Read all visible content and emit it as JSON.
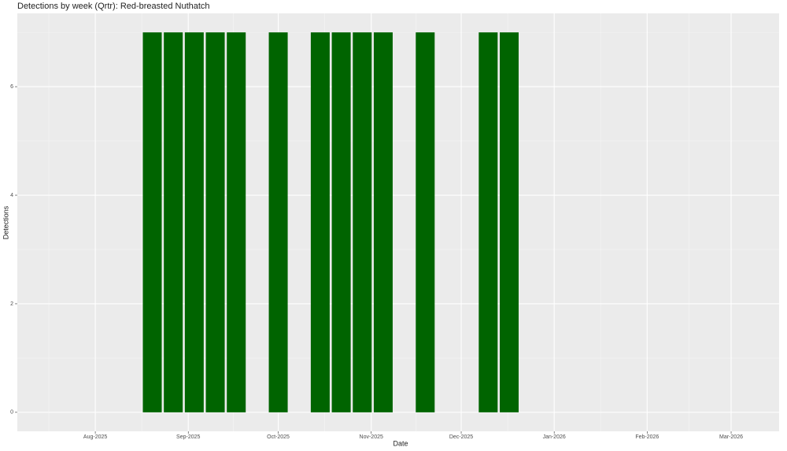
{
  "chart_data": {
    "type": "bar",
    "title": "Detections by week (Qrtr): Red-breasted Nuthatch",
    "x_label": "Date",
    "y_label": "Detections",
    "x": [
      "2025-08-20",
      "2025-08-27",
      "2025-09-03",
      "2025-09-10",
      "2025-09-17",
      "2025-10-01",
      "2025-10-15",
      "2025-10-22",
      "2025-10-29",
      "2025-11-05",
      "2025-11-19",
      "2025-12-10",
      "2025-12-17"
    ],
    "values": [
      7,
      7,
      7,
      7,
      7,
      7,
      7,
      7,
      7,
      7,
      7,
      7,
      7
    ],
    "color": "#006400",
    "xlim": [
      "2025-07-06",
      "2026-03-17"
    ],
    "xticks": [
      {
        "value": "2025-08-01",
        "label": "Aug-2025"
      },
      {
        "value": "2025-09-01",
        "label": "Sep-2025"
      },
      {
        "value": "2025-10-01",
        "label": "Oct-2025"
      },
      {
        "value": "2025-11-01",
        "label": "Nov-2025"
      },
      {
        "value": "2025-12-01",
        "label": "Dec-2025"
      },
      {
        "value": "2026-01-01",
        "label": "Jan-2026"
      },
      {
        "value": "2026-02-01",
        "label": "Feb-2026"
      },
      {
        "value": "2026-03-01",
        "label": "Mar-2026"
      }
    ],
    "ylim": [
      -0.35,
      7.35
    ],
    "yticks": [
      0,
      2,
      4,
      6
    ],
    "grid": true
  }
}
